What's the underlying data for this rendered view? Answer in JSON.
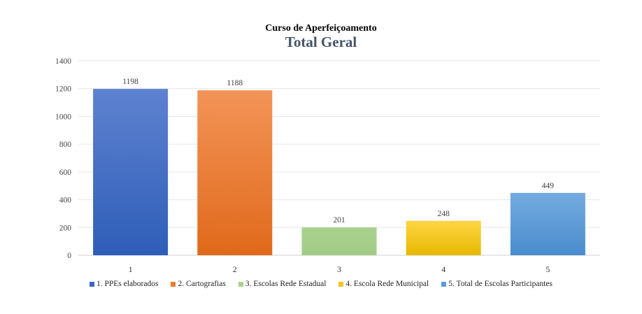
{
  "chart_data": {
    "type": "bar",
    "title": "Curso de Aperfeiçoamento",
    "subtitle": "Total Geral",
    "categories": [
      "1",
      "2",
      "3",
      "4",
      "5"
    ],
    "values": [
      1198,
      1188,
      201,
      248,
      449
    ],
    "series_names": [
      "1. PPEs elaborados",
      "2. Cartografias",
      "3. Escolas Rede Estadual",
      "4.  Escola Rede Municipal",
      "5. Total de Escolas Participantes"
    ],
    "colors": [
      "#3a66c4",
      "#f07b2b",
      "#a9d18e",
      "#fbc520",
      "#5a9bd8"
    ],
    "ylim": [
      0,
      1400
    ],
    "yticks": [
      0,
      200,
      400,
      600,
      800,
      1000,
      1200,
      1400
    ],
    "grid": true,
    "legend_position": "bottom",
    "xlabel": "",
    "ylabel": ""
  }
}
